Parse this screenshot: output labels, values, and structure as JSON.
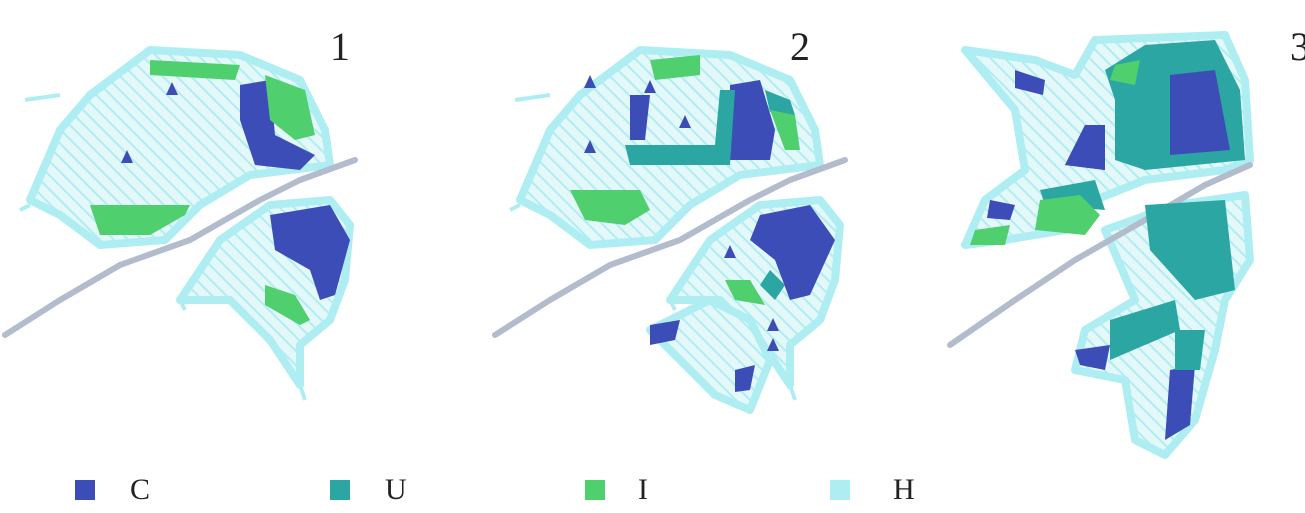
{
  "panels": [
    {
      "label": "1"
    },
    {
      "label": "2"
    },
    {
      "label": "3"
    }
  ],
  "legend": [
    {
      "label": "C",
      "color": "#3d4db7"
    },
    {
      "label": "U",
      "color": "#2ba6a2"
    },
    {
      "label": "I",
      "color": "#4fcf6d"
    },
    {
      "label": "H",
      "color": "#aeeef2"
    }
  ]
}
